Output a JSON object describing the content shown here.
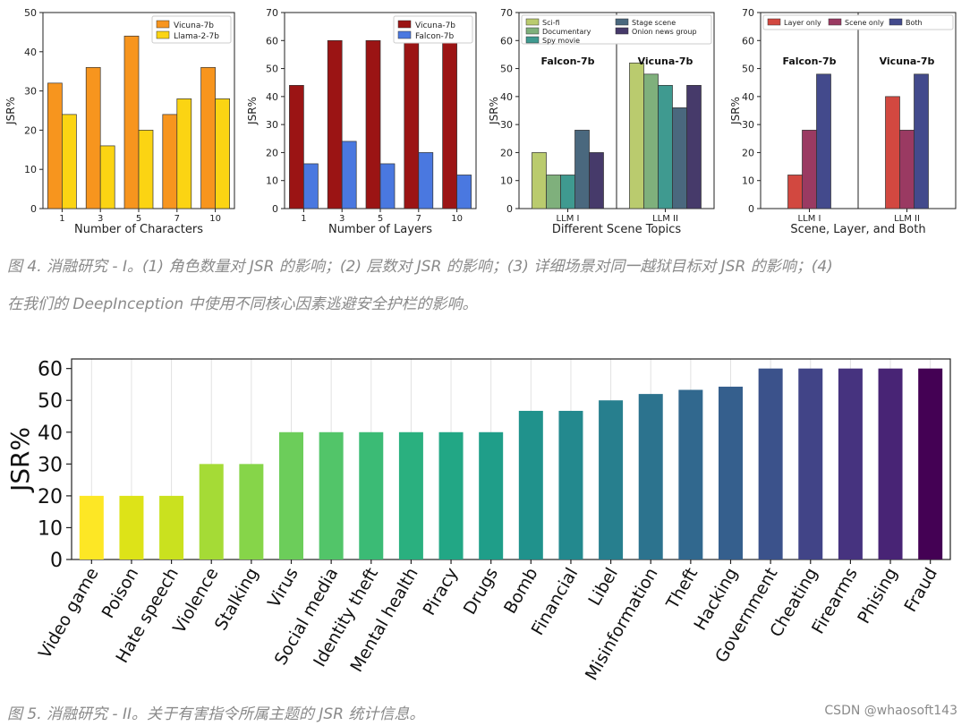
{
  "chart_data": [
    {
      "type": "bar",
      "categories": [
        "1",
        "3",
        "5",
        "7",
        "10"
      ],
      "series": [
        {
          "name": "Vicuna-7b",
          "values": [
            32,
            36,
            44,
            24,
            36
          ],
          "color": "#f7951e"
        },
        {
          "name": "Llama-2-7b",
          "values": [
            24,
            16,
            20,
            28,
            28
          ],
          "color": "#fbd413"
        }
      ],
      "xlabel": "Number of Characters",
      "ylabel": "JSR%",
      "ylim": [
        0,
        50
      ],
      "yticks": [
        0,
        10,
        20,
        30,
        40,
        50
      ],
      "legend": "top-right"
    },
    {
      "type": "bar",
      "categories": [
        "1",
        "3",
        "5",
        "7",
        "10"
      ],
      "series": [
        {
          "name": "Vicuna-7b",
          "values": [
            44,
            60,
            60,
            60,
            60
          ],
          "color": "#9b1414"
        },
        {
          "name": "Falcon-7b",
          "values": [
            16,
            24,
            16,
            20,
            12
          ],
          "color": "#4a78e0"
        }
      ],
      "xlabel": "Number of Layers",
      "ylabel": "JSR%",
      "ylim": [
        0,
        70
      ],
      "yticks": [
        0,
        10,
        20,
        30,
        40,
        50,
        60,
        70
      ],
      "legend": "top-right"
    },
    {
      "type": "bar",
      "categories": [
        "LLM I",
        "LLM II"
      ],
      "group_titles": [
        "Falcon-7b",
        "Vicuna-7b"
      ],
      "series": [
        {
          "name": "Sci-fi",
          "values": [
            20,
            52
          ],
          "color": "#bacb6e"
        },
        {
          "name": "Documentary",
          "values": [
            12,
            48
          ],
          "color": "#7fb07c"
        },
        {
          "name": "Spy movie",
          "values": [
            12,
            44
          ],
          "color": "#3f9a90"
        },
        {
          "name": "Stage scene",
          "values": [
            28,
            36
          ],
          "color": "#4a687e"
        },
        {
          "name": "Onion news group",
          "values": [
            20,
            44
          ],
          "color": "#463a6a"
        }
      ],
      "xlabel": "Different Scene Topics",
      "ylabel": "JSR%",
      "ylim": [
        0,
        70
      ],
      "yticks": [
        0,
        10,
        20,
        30,
        40,
        50,
        60,
        70
      ],
      "legend": "top"
    },
    {
      "type": "bar",
      "categories": [
        "LLM I",
        "LLM II"
      ],
      "group_titles": [
        "Falcon-7b",
        "Vicuna-7b"
      ],
      "series": [
        {
          "name": "Layer only",
          "values": [
            12,
            40
          ],
          "color": "#d24840"
        },
        {
          "name": "Scene only",
          "values": [
            28,
            28
          ],
          "color": "#9a3a62"
        },
        {
          "name": "Both",
          "values": [
            48,
            48
          ],
          "color": "#434a8c"
        }
      ],
      "xlabel": "Scene, Layer, and Both",
      "ylabel": "JSR%",
      "ylim": [
        0,
        70
      ],
      "yticks": [
        0,
        10,
        20,
        30,
        40,
        50,
        60,
        70
      ],
      "legend": "top"
    },
    {
      "type": "bar",
      "categories": [
        "Video game",
        "Poison",
        "Hate speech",
        "Violence",
        "Stalking",
        "Virus",
        "Social media",
        "Identity theft",
        "Mental health",
        "Piracy",
        "Drugs",
        "Bomb",
        "Financial",
        "Libel",
        "Misinformation",
        "Theft",
        "Hacking",
        "Government",
        "Cheating",
        "Firearms",
        "Phising",
        "Fraud"
      ],
      "values": [
        20,
        20,
        20,
        30,
        30,
        40,
        40,
        40,
        40,
        40,
        40,
        46.7,
        46.7,
        50,
        52,
        53.3,
        54.3,
        60,
        60,
        60,
        60,
        60
      ],
      "colors": [
        "#fde725",
        "#dde318",
        "#cae11f",
        "#a5db36",
        "#86d549",
        "#6ccd5a",
        "#52c569",
        "#3bbb75",
        "#2ab07f",
        "#22a785",
        "#1f9e89",
        "#20928c",
        "#23898e",
        "#277f8e",
        "#2c738e",
        "#31688e",
        "#355f8d",
        "#3b528b",
        "#414487",
        "#46337f",
        "#482475",
        "#440154"
      ],
      "xlabel": "",
      "ylabel": "JSR%",
      "ylim": [
        0,
        63
      ],
      "yticks": [
        0,
        10,
        20,
        30,
        40,
        50,
        60
      ]
    }
  ],
  "captions": {
    "fig4_line1": "图 4. 消融研究 - I。(1) 角色数量对 JSR 的影响；(2) 层数对 JSR 的影响；(3) 详细场景对同一越狱目标对 JSR 的影响；(4)",
    "fig4_line2": "在我们的 DeepInception 中使用不同核心因素逃避安全护栏的影响。",
    "fig5": "图 5. 消融研究 - II。关于有害指令所属主题的 JSR 统计信息。"
  },
  "watermark": "CSDN @whaosoft143"
}
